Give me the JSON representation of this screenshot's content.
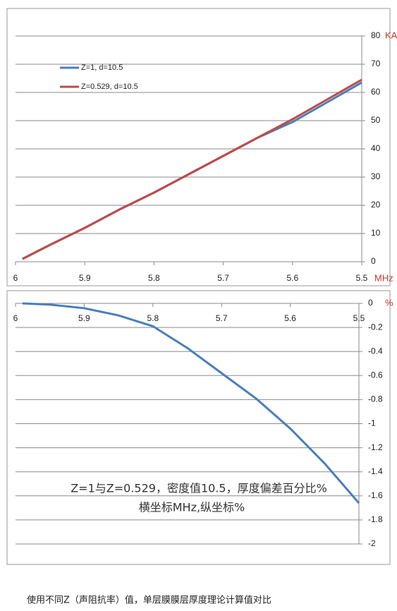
{
  "chart_data": [
    {
      "type": "line",
      "x": [
        5.99,
        5.95,
        5.9,
        5.85,
        5.8,
        5.75,
        5.7,
        5.65,
        5.6,
        5.55,
        5.5
      ],
      "series": [
        {
          "name": "Z=1, d=10.5",
          "color": "#4a7ebb",
          "values": [
            1,
            6,
            12,
            18.5,
            24.5,
            31,
            37.5,
            44,
            49.5,
            56.5,
            63.5
          ]
        },
        {
          "name": "Z=0.529, d=10.5",
          "color": "#be4b48",
          "values": [
            1,
            6,
            12,
            18.5,
            24.5,
            31,
            37.5,
            44,
            50.5,
            57.5,
            64.5
          ]
        }
      ],
      "xlim": [
        6,
        5.5
      ],
      "xticks": [
        6,
        5.9,
        5.8,
        5.7,
        5.6,
        5.5
      ],
      "ylim": [
        0,
        80
      ],
      "yticks": [
        0,
        10,
        20,
        30,
        40,
        50,
        60,
        70,
        80
      ],
      "x_label": "MHz",
      "y_label": "KA",
      "grid": true,
      "legend": "upper left"
    },
    {
      "type": "line",
      "x": [
        5.99,
        5.95,
        5.9,
        5.85,
        5.8,
        5.75,
        5.7,
        5.65,
        5.6,
        5.55,
        5.5
      ],
      "series": [
        {
          "color": "#4a7ebb",
          "values": [
            0,
            -0.01,
            -0.04,
            -0.1,
            -0.19,
            -0.37,
            -0.58,
            -0.79,
            -1.04,
            -1.33,
            -1.66
          ]
        }
      ],
      "xlim": [
        6,
        5.5
      ],
      "xticks": [
        6,
        5.9,
        5.8,
        5.7,
        5.6,
        5.5
      ],
      "ylim": [
        -2,
        0
      ],
      "yticks": [
        0,
        -0.2,
        -0.4,
        -0.6,
        -0.8,
        -1,
        -1.2,
        -1.4,
        -1.6,
        -1.8,
        -2
      ],
      "y_label": "%",
      "grid": true,
      "annotations": [
        "Z=1与Z=0.529，密度值10.5，厚度偏差百分比%",
        "横坐标MHz,纵坐标%"
      ]
    }
  ],
  "caption": "使用不同Z（声阻抗率）值，单层膜膜层厚度理论计算值对比"
}
